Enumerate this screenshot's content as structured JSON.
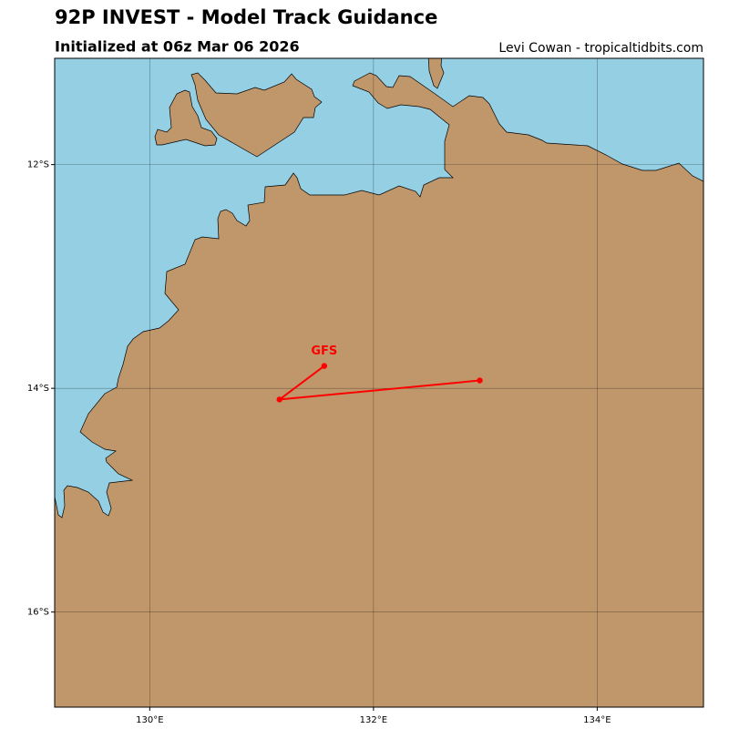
{
  "chart_data": {
    "type": "map",
    "title": "92P INVEST - Model Track Guidance",
    "subtitle": "Initialized at 06z Mar 06 2026",
    "credit": "Levi Cowan - tropicaltidbits.com",
    "xlim": [
      129.15,
      134.95
    ],
    "ylim": [
      -16.85,
      -11.05
    ],
    "xticks": [
      {
        "value": 130,
        "label": "130°E"
      },
      {
        "value": 132,
        "label": "132°E"
      },
      {
        "value": 134,
        "label": "134°E"
      }
    ],
    "yticks": [
      {
        "value": -12,
        "label": "12°S"
      },
      {
        "value": -14,
        "label": "14°S"
      },
      {
        "value": -16,
        "label": "16°S"
      }
    ],
    "grid": true,
    "ocean_color": "#94cfe4",
    "land_color": "#bf976b",
    "series": [
      {
        "name": "GFS",
        "color": "#ff0000",
        "x": [
          131.56,
          131.16,
          132.95
        ],
        "y": [
          -13.8,
          -14.1,
          -13.93
        ]
      }
    ]
  }
}
